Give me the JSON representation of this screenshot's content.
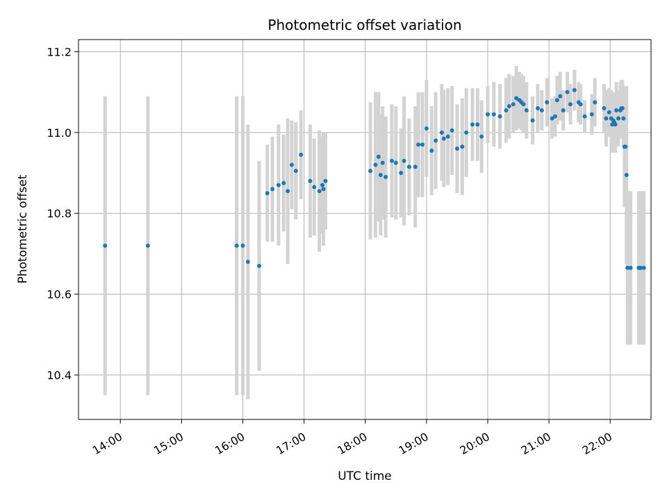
{
  "chart_data": {
    "type": "scatter",
    "title": "Photometric offset variation",
    "xlabel": "UTC time",
    "ylabel": "Photometric offset",
    "x_ticks": [
      "14:00",
      "15:00",
      "16:00",
      "17:00",
      "18:00",
      "19:00",
      "20:00",
      "21:00",
      "22:00"
    ],
    "y_ticks": [
      "10.4",
      "10.6",
      "10.8",
      "11.0",
      "11.2"
    ],
    "xlim": [
      "13:19",
      "22:40"
    ],
    "ylim": [
      10.29,
      11.23
    ],
    "grid": true,
    "colors": {
      "point": "#1f77b4",
      "errorbar": "#d3d3d3",
      "grid": "#b0b0b0"
    },
    "series": [
      {
        "x": [
          "13:45",
          "14:27",
          "15:54",
          "16:00",
          "16:05",
          "16:16",
          "16:24",
          "16:29",
          "16:35",
          "16:40",
          "16:44",
          "16:48",
          "16:52",
          "16:57",
          "17:06",
          "17:10",
          "17:15",
          "17:18",
          "17:19",
          "17:21",
          "18:05",
          "18:10",
          "18:13",
          "18:15",
          "18:17",
          "18:20",
          "18:26",
          "18:30",
          "18:35",
          "18:38",
          "18:43",
          "18:49",
          "18:52",
          "18:56",
          "19:00",
          "19:05",
          "19:09",
          "19:15",
          "19:17",
          "19:21",
          "19:25",
          "19:30",
          "19:35",
          "19:39",
          "19:45",
          "19:50",
          "19:54",
          "20:00",
          "20:06",
          "20:12",
          "20:18",
          "20:21",
          "20:25",
          "20:28",
          "20:31",
          "20:33",
          "20:35",
          "20:38",
          "20:44",
          "20:49",
          "20:53",
          "20:58",
          "21:03",
          "21:06",
          "21:08",
          "21:11",
          "21:14",
          "21:18",
          "21:21",
          "21:25",
          "21:29",
          "21:31",
          "21:35",
          "21:42",
          "21:45",
          "21:54",
          "21:56",
          "21:59",
          "22:01",
          "22:02",
          "22:03",
          "22:04",
          "22:05",
          "22:06",
          "22:08",
          "22:10",
          "22:11",
          "22:12",
          "22:13",
          "22:14",
          "22:15",
          "22:16",
          "22:17",
          "22:20",
          "22:28",
          "22:29",
          "22:30",
          "22:33"
        ],
        "y": [
          10.72,
          10.72,
          10.72,
          10.72,
          10.68,
          10.67,
          10.85,
          10.86,
          10.87,
          10.875,
          10.855,
          10.92,
          10.905,
          10.945,
          10.88,
          10.865,
          10.855,
          10.87,
          10.86,
          10.88,
          10.905,
          10.92,
          10.94,
          10.895,
          10.925,
          10.89,
          10.93,
          10.925,
          10.9,
          10.93,
          10.915,
          10.915,
          10.97,
          10.97,
          11.01,
          10.955,
          10.98,
          11.0,
          10.985,
          10.99,
          11.005,
          10.96,
          10.965,
          11.0,
          11.02,
          11.02,
          10.99,
          11.045,
          11.045,
          11.04,
          11.055,
          11.065,
          11.07,
          11.085,
          11.08,
          11.075,
          11.07,
          11.055,
          11.03,
          11.06,
          11.055,
          11.075,
          11.035,
          11.04,
          11.08,
          11.09,
          11.055,
          11.1,
          11.07,
          11.105,
          11.075,
          11.07,
          11.04,
          11.045,
          11.075,
          11.06,
          11.035,
          11.05,
          11.035,
          11.02,
          11.03,
          11.025,
          11.02,
          11.055,
          11.035,
          11.055,
          11.06,
          11.06,
          11.035,
          10.965,
          10.965,
          10.895,
          10.665,
          10.665,
          10.665,
          10.665,
          10.665,
          10.665
        ],
        "err": [
          0.37,
          0.37,
          0.37,
          0.37,
          0.34,
          0.26,
          0.12,
          0.13,
          0.15,
          0.12,
          0.18,
          0.11,
          0.12,
          0.11,
          0.14,
          0.12,
          0.15,
          0.12,
          0.14,
          0.12,
          0.17,
          0.18,
          0.16,
          0.15,
          0.14,
          0.15,
          0.14,
          0.14,
          0.11,
          0.16,
          0.12,
          0.15,
          0.13,
          0.13,
          0.12,
          0.11,
          0.12,
          0.12,
          0.12,
          0.12,
          0.11,
          0.11,
          0.12,
          0.11,
          0.09,
          0.09,
          0.09,
          0.07,
          0.08,
          0.08,
          0.08,
          0.08,
          0.07,
          0.08,
          0.07,
          0.07,
          0.07,
          0.07,
          0.06,
          0.06,
          0.05,
          0.06,
          0.05,
          0.05,
          0.06,
          0.06,
          0.05,
          0.05,
          0.05,
          0.05,
          0.05,
          0.05,
          0.04,
          0.05,
          0.06,
          0.06,
          0.07,
          0.06,
          0.07,
          0.07,
          0.07,
          0.07,
          0.07,
          0.07,
          0.07,
          0.07,
          0.07,
          0.07,
          0.07,
          0.15,
          0.15,
          0.22,
          0.19,
          0.19,
          0.19,
          0.19,
          0.19,
          0.19
        ]
      }
    ]
  }
}
